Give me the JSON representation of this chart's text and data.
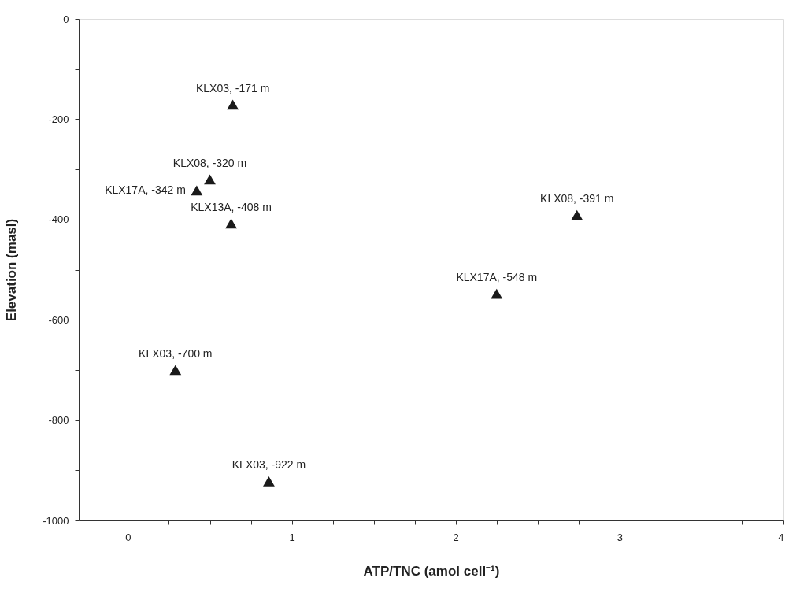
{
  "chart_data": {
    "type": "scatter",
    "xlabel": "ATP/TNC (amol cell⁻¹)",
    "ylabel": "Elevation (masl)",
    "x": [
      0.64,
      0.5,
      0.42,
      0.63,
      2.74,
      2.25,
      0.29,
      0.86
    ],
    "series": [
      {
        "color": "#1a1a1a",
        "values": [
          -171,
          -320,
          -342,
          -408,
          -391,
          -548,
          -700,
          -922
        ]
      }
    ],
    "marker": "triangle",
    "grid": false,
    "xlim": [
      -0.3,
      4
    ],
    "xticks": [
      {
        "value": -0.25,
        "label": null
      },
      0,
      {
        "value": 0.25,
        "label": null
      },
      {
        "value": 0.5,
        "label": null
      },
      {
        "value": 0.75,
        "label": null
      },
      1,
      {
        "value": 1.25,
        "label": null
      },
      {
        "value": 1.5,
        "label": null
      },
      {
        "value": 1.75,
        "label": null
      },
      2,
      {
        "value": 2.25,
        "label": null
      },
      {
        "value": 2.5,
        "label": null
      },
      {
        "value": 2.75,
        "label": null
      },
      3,
      {
        "value": 3.25,
        "label": null
      },
      {
        "value": 3.5,
        "label": null
      },
      {
        "value": 3.75,
        "label": null
      },
      4
    ],
    "ylim": [
      -1000,
      0
    ],
    "yticks": [
      -1000,
      {
        "value": -900,
        "label": null
      },
      -800,
      {
        "value": -700,
        "label": null
      },
      -600,
      {
        "value": -500,
        "label": null
      },
      -400,
      {
        "value": -300,
        "label": null
      },
      -200,
      {
        "value": -100,
        "label": null
      },
      0
    ],
    "annotations": [
      {
        "text": "KLX03, -171 m",
        "x": 0.64,
        "y": -171
      },
      {
        "text": "KLX08, -320 m",
        "x": 0.5,
        "y": -320
      },
      {
        "text": "KLX17A, -342 m",
        "x": 0.42,
        "y": -342
      },
      {
        "text": "KLX13A, -408 m",
        "x": 0.63,
        "y": -408
      },
      {
        "text": "KLX08, -391 m",
        "x": 2.74,
        "y": -391
      },
      {
        "text": "KLX17A, -548 m",
        "x": 2.25,
        "y": -548
      },
      {
        "text": "KLX03, -700 m",
        "x": 0.29,
        "y": -700
      },
      {
        "text": "KLX03, -922 m",
        "x": 0.86,
        "y": -922
      }
    ]
  }
}
